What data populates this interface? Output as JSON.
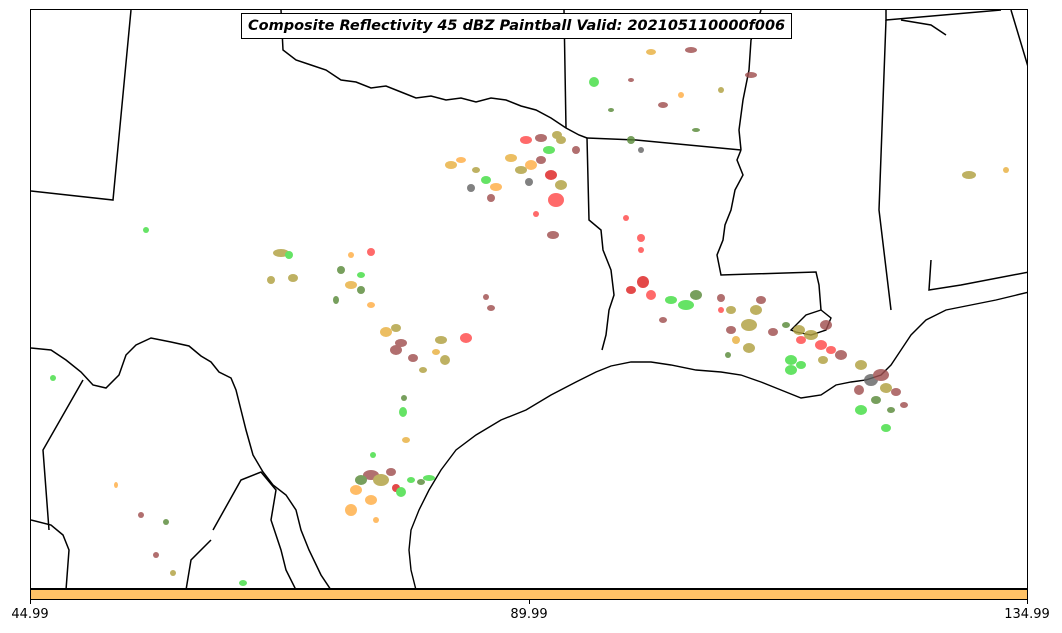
{
  "title": "Composite Reflectivity 45 dBZ Paintball Valid: 202105110000f006",
  "colorbar": {
    "color": "#ffc266",
    "tick_labels": [
      "44.99",
      "89.99",
      "134.99"
    ]
  },
  "map": {
    "region": "Texas / Louisiana Gulf Coast",
    "member_colors": [
      "#ff4a4a",
      "#e8b040",
      "#ffae45",
      "#44dd44",
      "#a05050",
      "#b0a040",
      "#5a8a3a",
      "#dd2222",
      "#666666"
    ]
  }
}
